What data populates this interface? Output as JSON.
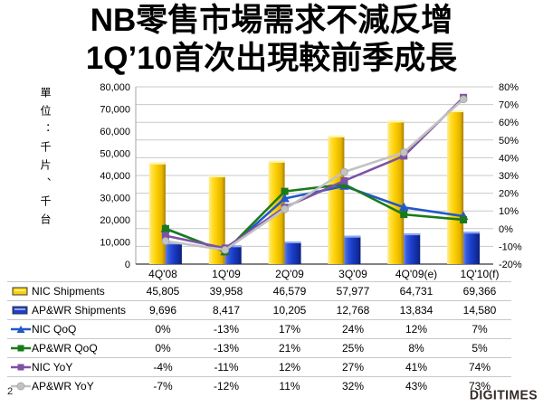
{
  "title": {
    "line1": "NB零售市場需求不減反增",
    "line2": "1Q’10首次出現較前季成長"
  },
  "unit_label": "單位：千片、千台",
  "page_number": "2",
  "logo_text": "DIGITIMES",
  "colors": {
    "nic_bar": "#FCD000",
    "apwr_bar": "#1C3FCC",
    "nic_qoq_line": "#2358C8",
    "apwr_qoq_line": "#1A7A1A",
    "nic_yoy_line": "#7D52A5",
    "apwr_yoy_line": "#C2C2C2",
    "gridline": "#C8C8C8",
    "axis": "#595959"
  },
  "chart_data": {
    "type": "combo-bar-line",
    "title": "NB零售市場需求不減反增 1Q’10首次出現較前季成長",
    "categories": [
      "4Q'08",
      "1Q'09",
      "2Q'09",
      "3Q'09",
      "4Q'09(e)",
      "1Q'10(f)"
    ],
    "grid": "horizontal",
    "legend_position": "table-left",
    "left_axis": {
      "min": 0,
      "max": 80000,
      "step": 10000,
      "tick_labels": [
        "80,000",
        "70,000",
        "60,000",
        "50,000",
        "40,000",
        "30,000",
        "20,000",
        "10,000",
        "0"
      ],
      "unit": "千片、千台"
    },
    "right_axis": {
      "min": -20,
      "max": 80,
      "step": 10,
      "tick_labels": [
        "80%",
        "70%",
        "60%",
        "50%",
        "40%",
        "30%",
        "20%",
        "10%",
        "0%",
        "-10%",
        "-20%"
      ]
    },
    "series": [
      {
        "name": "NIC Shipments",
        "type": "bar",
        "axis": "left",
        "color": "#FCD000",
        "values": [
          45805,
          39958,
          46579,
          57977,
          64731,
          69366
        ],
        "labels": [
          "45,805",
          "39,958",
          "46,579",
          "57,977",
          "64,731",
          "69,366"
        ]
      },
      {
        "name": "AP&WR Shipments",
        "type": "bar",
        "axis": "left",
        "color": "#1C3FCC",
        "values": [
          9696,
          8417,
          10205,
          12768,
          13834,
          14580
        ],
        "labels": [
          "9,696",
          "8,417",
          "10,205",
          "12,768",
          "13,834",
          "14,580"
        ]
      },
      {
        "name": "NIC QoQ",
        "type": "line",
        "marker": "triangle",
        "axis": "right",
        "color": "#2358C8",
        "values": [
          0,
          -13,
          17,
          24,
          12,
          7
        ],
        "labels": [
          "0%",
          "-13%",
          "17%",
          "24%",
          "12%",
          "7%"
        ]
      },
      {
        "name": "AP&WR QoQ",
        "type": "line",
        "marker": "square",
        "axis": "right",
        "color": "#1A7A1A",
        "values": [
          0,
          -13,
          21,
          25,
          8,
          5
        ],
        "labels": [
          "0%",
          "-13%",
          "21%",
          "25%",
          "8%",
          "5%"
        ]
      },
      {
        "name": "NIC YoY",
        "type": "line",
        "marker": "square",
        "axis": "right",
        "color": "#7D52A5",
        "values": [
          -4,
          -11,
          12,
          27,
          41,
          74
        ],
        "labels": [
          "-4%",
          "-11%",
          "12%",
          "27%",
          "41%",
          "74%"
        ]
      },
      {
        "name": "AP&WR YoY",
        "type": "line",
        "marker": "circle",
        "axis": "right",
        "color": "#C2C2C2",
        "values": [
          -7,
          -12,
          11,
          32,
          43,
          73
        ],
        "labels": [
          "-7%",
          "-12%",
          "11%",
          "32%",
          "43%",
          "73%"
        ]
      }
    ]
  }
}
